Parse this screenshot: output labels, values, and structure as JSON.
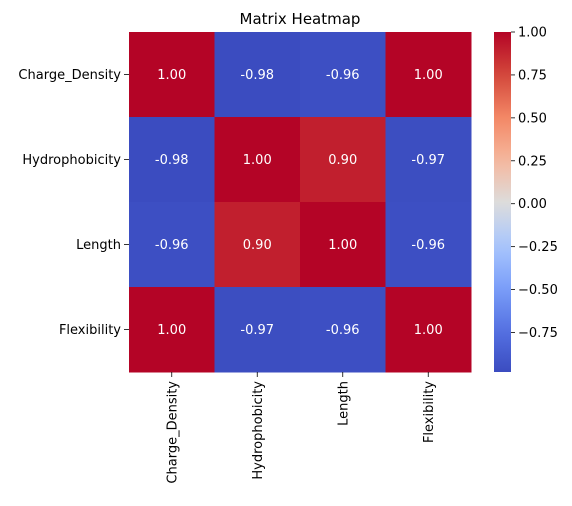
{
  "chart_data": {
    "type": "heatmap",
    "title": "Matrix Heatmap",
    "xlabel": "",
    "ylabel": "",
    "rows": [
      "Charge_Density",
      "Hydrophobicity",
      "Length",
      "Flexibility"
    ],
    "cols": [
      "Charge_Density",
      "Hydrophobicity",
      "Length",
      "Flexibility"
    ],
    "values": [
      [
        1.0,
        -0.98,
        -0.96,
        1.0
      ],
      [
        -0.98,
        1.0,
        0.9,
        -0.97
      ],
      [
        -0.96,
        0.9,
        1.0,
        -0.96
      ],
      [
        1.0,
        -0.97,
        -0.96,
        1.0
      ]
    ],
    "labels": [
      [
        "1.00",
        "-0.98",
        "-0.96",
        "1.00"
      ],
      [
        "-0.98",
        "1.00",
        "0.90",
        "-0.97"
      ],
      [
        "-0.96",
        "0.90",
        "1.00",
        "-0.96"
      ],
      [
        "1.00",
        "-0.97",
        "-0.96",
        "1.00"
      ]
    ],
    "colorscale": "coolwarm",
    "vmin": -0.98,
    "vmax": 1.0,
    "colorbar_ticks": [
      1.0,
      0.75,
      0.5,
      0.25,
      0.0,
      -0.25,
      -0.5,
      -0.75
    ],
    "colorbar_tick_labels": [
      "1.00",
      "0.75",
      "0.50",
      "0.25",
      "0.00",
      "−0.25",
      "−0.50",
      "−0.75"
    ],
    "legend": "colorbar-right",
    "grid": false
  }
}
